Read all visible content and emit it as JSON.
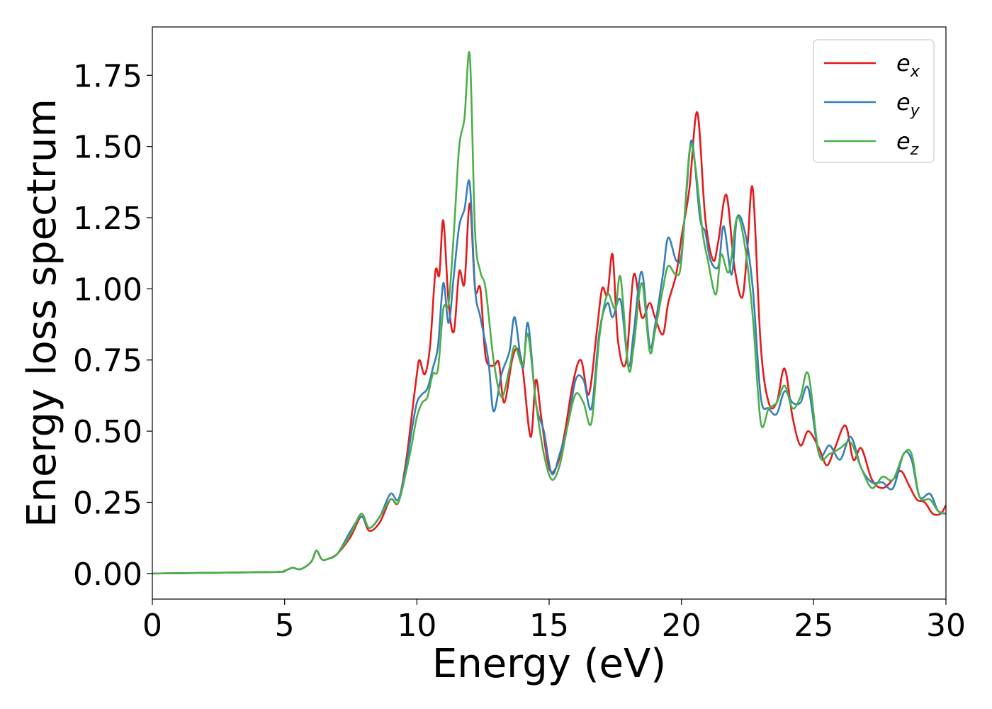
{
  "chart_data": {
    "type": "line",
    "xlabel": "Energy (eV)",
    "ylabel": "Energy loss spectrum",
    "xlim": [
      0,
      30
    ],
    "ylim": [
      -0.09,
      1.92
    ],
    "xticks": [
      0,
      5,
      10,
      15,
      20,
      25,
      30
    ],
    "xtick_labels": [
      "0",
      "5",
      "10",
      "15",
      "20",
      "25",
      "30"
    ],
    "yticks": [
      0.0,
      0.25,
      0.5,
      0.75,
      1.0,
      1.25,
      1.5,
      1.75
    ],
    "ytick_labels": [
      "0.00",
      "0.25",
      "0.50",
      "0.75",
      "1.00",
      "1.25",
      "1.50",
      "1.75"
    ],
    "grid": false,
    "legend_position": "top-right",
    "series": [
      {
        "name": "e_x",
        "legend_base": "e",
        "legend_sub": "x",
        "color": "#e41a1c",
        "x": [
          0,
          4.5,
          5.0,
          5.3,
          5.6,
          6.0,
          6.2,
          6.4,
          6.6,
          7.0,
          7.5,
          7.9,
          8.2,
          8.6,
          9.0,
          9.3,
          9.6,
          9.8,
          10.0,
          10.1,
          10.3,
          10.5,
          10.7,
          10.85,
          11.0,
          11.2,
          11.4,
          11.6,
          11.8,
          12.0,
          12.2,
          12.4,
          12.6,
          12.9,
          13.1,
          13.3,
          13.6,
          13.8,
          14.0,
          14.3,
          14.5,
          14.7,
          15.0,
          15.3,
          15.6,
          15.9,
          16.2,
          16.5,
          16.8,
          17.0,
          17.2,
          17.4,
          17.6,
          17.9,
          18.2,
          18.5,
          18.8,
          19.0,
          19.3,
          19.5,
          19.8,
          20.0,
          20.3,
          20.6,
          20.9,
          21.2,
          21.4,
          21.7,
          22.0,
          22.3,
          22.5,
          22.7,
          23.0,
          23.3,
          23.6,
          23.9,
          24.2,
          24.5,
          24.8,
          25.2,
          25.5,
          25.8,
          26.2,
          26.5,
          26.8,
          27.2,
          27.6,
          28.0,
          28.3,
          28.6,
          28.9,
          29.2,
          29.5,
          29.8,
          30.0
        ],
        "y": [
          0.0,
          0.005,
          0.01,
          0.02,
          0.015,
          0.04,
          0.08,
          0.05,
          0.05,
          0.07,
          0.13,
          0.2,
          0.15,
          0.18,
          0.26,
          0.25,
          0.4,
          0.55,
          0.7,
          0.75,
          0.7,
          0.8,
          1.06,
          1.05,
          1.24,
          0.95,
          0.85,
          1.06,
          1.02,
          1.3,
          1.0,
          1.0,
          0.76,
          0.73,
          0.74,
          0.6,
          0.75,
          0.79,
          0.72,
          0.48,
          0.68,
          0.55,
          0.37,
          0.38,
          0.5,
          0.67,
          0.75,
          0.63,
          0.85,
          1.0,
          0.98,
          1.12,
          0.82,
          0.74,
          1.05,
          0.9,
          0.95,
          0.9,
          0.84,
          0.95,
          1.05,
          1.18,
          1.35,
          1.62,
          1.25,
          1.1,
          1.17,
          1.33,
          1.08,
          0.97,
          1.15,
          1.35,
          0.8,
          0.6,
          0.6,
          0.72,
          0.55,
          0.45,
          0.5,
          0.44,
          0.38,
          0.44,
          0.52,
          0.4,
          0.44,
          0.33,
          0.3,
          0.33,
          0.36,
          0.31,
          0.26,
          0.25,
          0.21,
          0.21,
          0.24
        ]
      },
      {
        "name": "e_y",
        "legend_base": "e",
        "legend_sub": "y",
        "color": "#377eb8",
        "x": [
          0,
          4.5,
          5.0,
          5.3,
          5.6,
          6.0,
          6.2,
          6.4,
          6.6,
          7.0,
          7.5,
          7.9,
          8.2,
          8.6,
          9.0,
          9.3,
          9.6,
          9.8,
          10.0,
          10.2,
          10.4,
          10.6,
          10.8,
          11.0,
          11.2,
          11.4,
          11.6,
          11.8,
          12.0,
          12.2,
          12.4,
          12.7,
          12.9,
          13.2,
          13.5,
          13.7,
          14.0,
          14.2,
          14.5,
          14.8,
          15.1,
          15.4,
          15.7,
          16.0,
          16.3,
          16.6,
          16.9,
          17.2,
          17.4,
          17.7,
          18.0,
          18.2,
          18.5,
          18.8,
          19.0,
          19.3,
          19.5,
          19.8,
          20.0,
          20.2,
          20.4,
          20.7,
          20.9,
          21.1,
          21.4,
          21.6,
          21.9,
          22.1,
          22.4,
          22.7,
          23.0,
          23.3,
          23.6,
          23.9,
          24.2,
          24.5,
          24.8,
          25.2,
          25.6,
          26.0,
          26.4,
          26.8,
          27.2,
          27.6,
          28.0,
          28.4,
          28.7,
          29.0,
          29.4,
          29.7,
          30.0
        ],
        "y": [
          0.0,
          0.005,
          0.01,
          0.02,
          0.015,
          0.04,
          0.08,
          0.05,
          0.05,
          0.07,
          0.15,
          0.2,
          0.16,
          0.2,
          0.28,
          0.26,
          0.38,
          0.5,
          0.6,
          0.63,
          0.65,
          0.72,
          0.8,
          1.02,
          0.88,
          1.05,
          1.22,
          1.28,
          1.37,
          1.0,
          0.9,
          0.75,
          0.57,
          0.7,
          0.78,
          0.9,
          0.72,
          0.88,
          0.6,
          0.5,
          0.35,
          0.42,
          0.52,
          0.68,
          0.68,
          0.58,
          0.85,
          0.95,
          0.9,
          0.96,
          0.73,
          0.85,
          1.06,
          0.8,
          0.87,
          1.05,
          1.18,
          1.1,
          1.12,
          1.35,
          1.52,
          1.25,
          1.2,
          1.1,
          1.08,
          1.22,
          1.05,
          1.25,
          1.2,
          1.0,
          0.62,
          0.58,
          0.56,
          0.64,
          0.6,
          0.6,
          0.65,
          0.42,
          0.45,
          0.4,
          0.48,
          0.37,
          0.32,
          0.32,
          0.3,
          0.42,
          0.4,
          0.27,
          0.28,
          0.22,
          0.21
        ]
      },
      {
        "name": "e_z",
        "legend_base": "e",
        "legend_sub": "z",
        "color": "#4daf4a",
        "x": [
          0,
          4.5,
          5.0,
          5.3,
          5.6,
          6.0,
          6.2,
          6.4,
          6.6,
          7.0,
          7.5,
          7.9,
          8.2,
          8.6,
          9.0,
          9.3,
          9.6,
          9.8,
          10.0,
          10.2,
          10.4,
          10.6,
          10.8,
          11.0,
          11.2,
          11.4,
          11.6,
          11.8,
          12.0,
          12.2,
          12.4,
          12.6,
          12.9,
          13.2,
          13.5,
          13.7,
          14.0,
          14.2,
          14.5,
          14.8,
          15.1,
          15.4,
          15.7,
          16.0,
          16.3,
          16.6,
          16.9,
          17.2,
          17.5,
          17.7,
          18.0,
          18.2,
          18.5,
          18.8,
          19.0,
          19.3,
          19.5,
          19.8,
          20.0,
          20.3,
          20.5,
          20.8,
          21.0,
          21.3,
          21.5,
          21.8,
          22.1,
          22.4,
          22.7,
          23.0,
          23.3,
          23.6,
          23.9,
          24.2,
          24.5,
          24.8,
          25.2,
          25.6,
          26.0,
          26.4,
          26.8,
          27.2,
          27.6,
          28.0,
          28.4,
          28.7,
          29.0,
          29.4,
          29.7,
          30.0
        ],
        "y": [
          0.0,
          0.005,
          0.01,
          0.02,
          0.015,
          0.04,
          0.08,
          0.05,
          0.05,
          0.07,
          0.14,
          0.21,
          0.16,
          0.2,
          0.26,
          0.25,
          0.36,
          0.45,
          0.55,
          0.6,
          0.62,
          0.7,
          0.72,
          0.93,
          0.95,
          1.2,
          1.5,
          1.6,
          1.82,
          1.2,
          1.06,
          1.0,
          0.75,
          0.62,
          0.72,
          0.8,
          0.73,
          0.84,
          0.6,
          0.42,
          0.33,
          0.38,
          0.52,
          0.63,
          0.6,
          0.53,
          0.83,
          0.98,
          0.93,
          1.04,
          0.72,
          0.8,
          1.02,
          0.78,
          0.85,
          1.0,
          1.08,
          1.05,
          1.1,
          1.48,
          1.45,
          1.2,
          1.1,
          0.98,
          1.12,
          1.06,
          1.25,
          1.15,
          0.9,
          0.53,
          0.58,
          0.6,
          0.66,
          0.58,
          0.62,
          0.7,
          0.42,
          0.42,
          0.44,
          0.46,
          0.37,
          0.3,
          0.34,
          0.33,
          0.42,
          0.42,
          0.27,
          0.26,
          0.22,
          0.21
        ]
      }
    ]
  }
}
